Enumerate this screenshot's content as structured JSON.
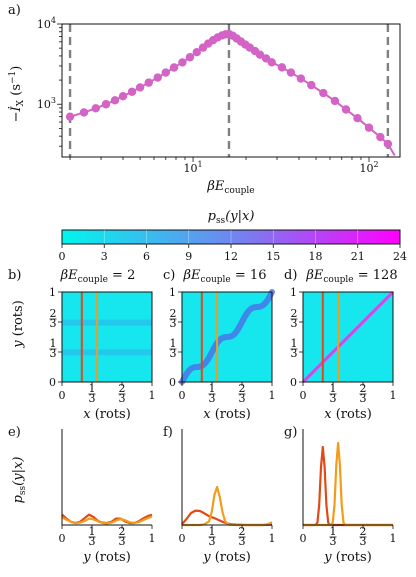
{
  "colors": {
    "line": "#d463c6",
    "vline": "#808080",
    "orange": "#f39c1b",
    "red": "#e04a16",
    "cbar_low": "#00f5ee",
    "cbar_high": "#ff00ff",
    "panel_bg": "#16e6ee"
  },
  "chart_data": [
    {
      "panel": "a)",
      "type": "line",
      "xscale": "log",
      "yscale": "log",
      "xlabel": "βE_couple",
      "ylabel": "−İ_X (s⁻¹)",
      "xlim": [
        1.8,
        150
      ],
      "ylim": [
        220,
        10000
      ],
      "x_tick_labels": [
        "10^1",
        "10^2"
      ],
      "y_tick_labels": [
        "10^3",
        "10^4"
      ],
      "vlines": [
        2,
        16,
        128
      ],
      "series": [
        {
          "x": [
            2,
            2.4,
            2.8,
            3.2,
            3.6,
            4,
            4.5,
            5,
            5.6,
            6.3,
            7,
            7.8,
            8.7,
            9.6,
            10.5,
            11.4,
            12.2,
            13,
            13.8,
            14.6,
            15.3,
            16,
            16.8,
            17.7,
            18.7,
            19.8,
            21,
            22.5,
            24,
            26,
            28,
            32,
            36,
            41,
            47,
            55,
            64,
            74,
            86,
            100,
            116,
            128,
            140
          ],
          "y": [
            700,
            790,
            890,
            1000,
            1120,
            1260,
            1430,
            1620,
            1860,
            2150,
            2480,
            2870,
            3320,
            3850,
            4450,
            5080,
            5700,
            6280,
            6800,
            7200,
            7430,
            7500,
            7150,
            6600,
            6050,
            5550,
            5080,
            4600,
            4150,
            3720,
            3330,
            2880,
            2480,
            2090,
            1730,
            1380,
            1100,
            860,
            670,
            510,
            390,
            320,
            230
          ]
        }
      ]
    },
    {
      "panel": "colorbar",
      "type": "heatmap",
      "title": "p_ss(y|x)",
      "range": [
        0,
        24
      ],
      "tick_labels": [
        "0",
        "3",
        "6",
        "9",
        "12",
        "15",
        "18",
        "21",
        "24"
      ]
    },
    {
      "panel": "b)",
      "type": "heatmap",
      "title": "βE_couple = 2",
      "xlabel": "x (rots)",
      "ylabel": "y (rots)",
      "x_tick_labels": [
        "0",
        "1/3",
        "2/3",
        "1"
      ],
      "y_tick_labels": [
        "0",
        "1/3",
        "2/3",
        "1"
      ],
      "e_couple": 2,
      "vlines_x": [
        0.22,
        0.39
      ]
    },
    {
      "panel": "c)",
      "type": "heatmap",
      "title": "βE_couple = 16",
      "xlabel": "x (rots)",
      "x_tick_labels": [
        "0",
        "1/3",
        "2/3",
        "1"
      ],
      "y_tick_labels": [
        "0",
        "1/3",
        "2/3",
        "1"
      ],
      "e_couple": 16,
      "vlines_x": [
        0.22,
        0.39
      ]
    },
    {
      "panel": "d)",
      "type": "heatmap",
      "title": "βE_couple = 128",
      "xlabel": "x (rots)",
      "x_tick_labels": [
        "0",
        "1/3",
        "2/3",
        "1"
      ],
      "y_tick_labels": [
        "0",
        "1/3",
        "2/3",
        "1"
      ],
      "e_couple": 128,
      "vlines_x": [
        0.22,
        0.39
      ]
    },
    {
      "panel": "e)",
      "type": "line",
      "xlabel": "y (rots)",
      "ylabel": "p_ss(y|x)",
      "xlim": [
        0,
        1
      ],
      "ylim": [
        0,
        24
      ],
      "x_tick_labels": [
        "0",
        "1/3",
        "2/3",
        "1"
      ],
      "series": [
        {
          "color": "red",
          "x": [
            0,
            0.05,
            0.1,
            0.15,
            0.2,
            0.25,
            0.3,
            0.35,
            0.4,
            0.45,
            0.5,
            0.55,
            0.6,
            0.65,
            0.7,
            0.75,
            0.8,
            0.85,
            0.9,
            0.95,
            1
          ],
          "y": [
            2.6,
            1.6,
            0.8,
            0.5,
            0.8,
            1.7,
            2.6,
            2.0,
            1.0,
            0.6,
            0.5,
            0.8,
            1.6,
            1.6,
            0.9,
            0.5,
            0.5,
            0.9,
            1.6,
            2.2,
            2.6
          ]
        },
        {
          "color": "orange",
          "x": [
            0,
            0.05,
            0.1,
            0.15,
            0.2,
            0.25,
            0.3,
            0.35,
            0.4,
            0.45,
            0.5,
            0.55,
            0.6,
            0.65,
            0.7,
            0.75,
            0.8,
            0.85,
            0.9,
            0.95,
            1
          ],
          "y": [
            1.9,
            1.3,
            0.8,
            0.5,
            0.6,
            1.0,
            1.6,
            1.4,
            0.9,
            0.5,
            0.4,
            0.6,
            1.1,
            1.5,
            1.2,
            0.7,
            0.5,
            0.7,
            1.2,
            1.7,
            2.1
          ]
        }
      ]
    },
    {
      "panel": "f)",
      "type": "line",
      "xlabel": "y (rots)",
      "xlim": [
        0,
        1
      ],
      "ylim": [
        0,
        24
      ],
      "x_tick_labels": [
        "0",
        "1/3",
        "2/3",
        "1"
      ],
      "series": [
        {
          "color": "red",
          "x": [
            0,
            0.05,
            0.1,
            0.15,
            0.2,
            0.25,
            0.3,
            0.35,
            0.4,
            0.45,
            0.5,
            0.55,
            0.6,
            0.7,
            0.8,
            0.9,
            1
          ],
          "y": [
            0.2,
            1.5,
            3.0,
            3.6,
            3.5,
            2.9,
            2.2,
            1.8,
            1.3,
            0.8,
            0.4,
            0.2,
            0.1,
            0,
            0,
            0,
            0.1
          ]
        },
        {
          "color": "orange",
          "x": [
            0,
            0.1,
            0.2,
            0.25,
            0.3,
            0.33,
            0.36,
            0.39,
            0.42,
            0.45,
            0.48,
            0.52,
            0.6,
            0.7,
            0.8,
            0.9,
            0.95,
            1
          ],
          "y": [
            0,
            0,
            0,
            0.2,
            0.9,
            3.2,
            7.5,
            9.5,
            7.0,
            3.2,
            0.9,
            0.1,
            0,
            0,
            0,
            0,
            0.2,
            0.7
          ]
        }
      ]
    },
    {
      "panel": "g)",
      "type": "line",
      "xlabel": "y (rots)",
      "xlim": [
        0,
        1
      ],
      "ylim": [
        0,
        24
      ],
      "x_tick_labels": [
        "0",
        "1/3",
        "2/3",
        "1"
      ],
      "series": [
        {
          "color": "red",
          "x": [
            0,
            0.14,
            0.16,
            0.18,
            0.2,
            0.22,
            0.24,
            0.26,
            0.28,
            0.3,
            1
          ],
          "y": [
            0,
            0,
            0.6,
            5.0,
            14.5,
            19.5,
            14.5,
            5.0,
            0.6,
            0,
            0
          ]
        },
        {
          "color": "orange",
          "x": [
            0,
            0.31,
            0.33,
            0.35,
            0.37,
            0.39,
            0.41,
            0.43,
            0.45,
            0.47,
            1
          ],
          "y": [
            0,
            0,
            0.6,
            5.0,
            15.0,
            20.5,
            15.0,
            5.0,
            0.6,
            0,
            0
          ]
        }
      ]
    }
  ]
}
